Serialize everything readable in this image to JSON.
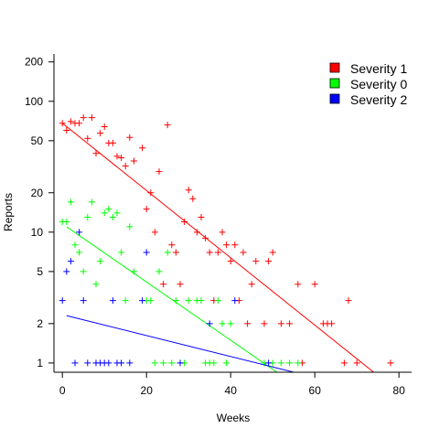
{
  "chart_data": {
    "type": "scatter",
    "title": "",
    "xlabel": "Weeks",
    "ylabel": "Reports",
    "xlim": [
      -2,
      83
    ],
    "ylim": [
      0.85,
      230
    ],
    "y_scale": "log",
    "x_ticks": [
      0,
      20,
      40,
      60,
      80
    ],
    "x_tick_labels": [
      "0",
      "20",
      "40",
      "60",
      "80"
    ],
    "y_ticks": [
      1,
      2,
      5,
      10,
      20,
      50,
      100,
      200
    ],
    "y_tick_labels": [
      "1",
      "2",
      "5",
      "10",
      "20",
      "50",
      "100",
      "200"
    ],
    "grid": false,
    "legend_position": "top-right",
    "series": [
      {
        "name": "Severity 1",
        "color": "#ff0000",
        "marker": "+",
        "points": [
          [
            0,
            68
          ],
          [
            1,
            60
          ],
          [
            2,
            70
          ],
          [
            3,
            68
          ],
          [
            4,
            68
          ],
          [
            5,
            75
          ],
          [
            6,
            52
          ],
          [
            7,
            75
          ],
          [
            8,
            40
          ],
          [
            9,
            57
          ],
          [
            10,
            64
          ],
          [
            11,
            48
          ],
          [
            12,
            48
          ],
          [
            13,
            38
          ],
          [
            14,
            37
          ],
          [
            15,
            32
          ],
          [
            16,
            53
          ],
          [
            17,
            35
          ],
          [
            19,
            44
          ],
          [
            20,
            15
          ],
          [
            21,
            20
          ],
          [
            22,
            10
          ],
          [
            23,
            29
          ],
          [
            24,
            4
          ],
          [
            25,
            66
          ],
          [
            26,
            8
          ],
          [
            27,
            7
          ],
          [
            28,
            4
          ],
          [
            29,
            12
          ],
          [
            30,
            21
          ],
          [
            31,
            18
          ],
          [
            32,
            10
          ],
          [
            33,
            13
          ],
          [
            34,
            9
          ],
          [
            35,
            7
          ],
          [
            36,
            3
          ],
          [
            37,
            7
          ],
          [
            38,
            10
          ],
          [
            39,
            8
          ],
          [
            40,
            6
          ],
          [
            41,
            8
          ],
          [
            42,
            3
          ],
          [
            43,
            7
          ],
          [
            44,
            2
          ],
          [
            45,
            4
          ],
          [
            46,
            6
          ],
          [
            48,
            2
          ],
          [
            49,
            6
          ],
          [
            50,
            7
          ],
          [
            52,
            2
          ],
          [
            54,
            2
          ],
          [
            56,
            4
          ],
          [
            57,
            1
          ],
          [
            60,
            4
          ],
          [
            62,
            2
          ],
          [
            63,
            2
          ],
          [
            64,
            2
          ],
          [
            67,
            1
          ],
          [
            68,
            3
          ],
          [
            70,
            1
          ],
          [
            78,
            1
          ]
        ],
        "fit_line": [
          [
            0,
            68
          ],
          [
            74,
            0.85
          ]
        ]
      },
      {
        "name": "Severity 0",
        "color": "#00ff00",
        "marker": "+",
        "points": [
          [
            0,
            12
          ],
          [
            1,
            12
          ],
          [
            2,
            17
          ],
          [
            3,
            8
          ],
          [
            4,
            7
          ],
          [
            5,
            5
          ],
          [
            6,
            13
          ],
          [
            7,
            17
          ],
          [
            8,
            4
          ],
          [
            9,
            6
          ],
          [
            10,
            14
          ],
          [
            11,
            15
          ],
          [
            12,
            13
          ],
          [
            13,
            14
          ],
          [
            14,
            7
          ],
          [
            15,
            3
          ],
          [
            16,
            11
          ],
          [
            17,
            5
          ],
          [
            20,
            3
          ],
          [
            21,
            3
          ],
          [
            22,
            1
          ],
          [
            23,
            5
          ],
          [
            24,
            1
          ],
          [
            25,
            7
          ],
          [
            26,
            1
          ],
          [
            27,
            3
          ],
          [
            29,
            1
          ],
          [
            30,
            3
          ],
          [
            32,
            3
          ],
          [
            33,
            3
          ],
          [
            34,
            1
          ],
          [
            35,
            1
          ],
          [
            36,
            1
          ],
          [
            37,
            3
          ],
          [
            38,
            2
          ],
          [
            39,
            1
          ],
          [
            40,
            2
          ],
          [
            48,
            1
          ],
          [
            50,
            1
          ],
          [
            52,
            1
          ],
          [
            54,
            1
          ],
          [
            56,
            1
          ]
        ],
        "fit_line": [
          [
            1,
            11
          ],
          [
            51,
            0.85
          ]
        ]
      },
      {
        "name": "Severity 2",
        "color": "#0000ff",
        "marker": "+",
        "points": [
          [
            0,
            3
          ],
          [
            1,
            5
          ],
          [
            2,
            6
          ],
          [
            3,
            1
          ],
          [
            4,
            10
          ],
          [
            5,
            3
          ],
          [
            6,
            1
          ],
          [
            8,
            1
          ],
          [
            9,
            1
          ],
          [
            10,
            1
          ],
          [
            11,
            1
          ],
          [
            12,
            3
          ],
          [
            13,
            1
          ],
          [
            14,
            1
          ],
          [
            16,
            1
          ],
          [
            19,
            3
          ],
          [
            20,
            7
          ],
          [
            28,
            1
          ],
          [
            35,
            2
          ],
          [
            41,
            3
          ],
          [
            49,
            1
          ]
        ],
        "fit_line": [
          [
            1,
            2.3
          ],
          [
            55,
            0.85
          ]
        ]
      }
    ]
  }
}
